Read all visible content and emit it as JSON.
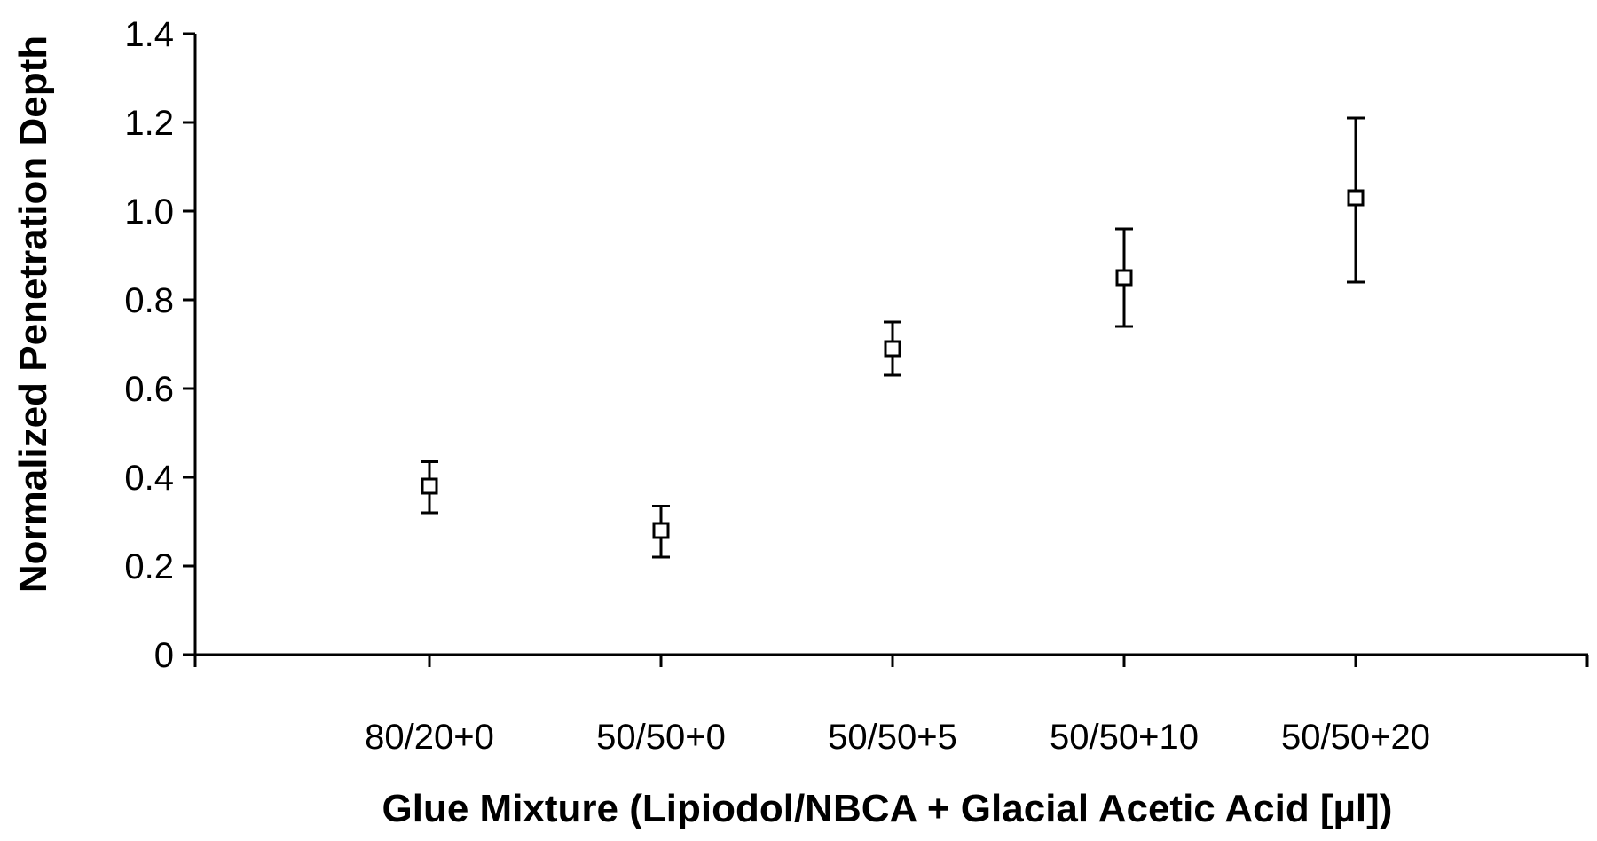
{
  "chart_data": {
    "type": "scatter",
    "title": "",
    "xlabel": "Glue Mixture (Lipiodol/NBCA + Glacial Acetic Acid [µl])",
    "ylabel": "Normalized Penetration Depth",
    "ylim": [
      0,
      1.4
    ],
    "y_ticks": [
      "0",
      "0.2",
      "0.4",
      "0.6",
      "0.8",
      "1.0",
      "1.2",
      "1.4"
    ],
    "categories": [
      "80/20+0",
      "50/50+0",
      "50/50+5",
      "50/50+10",
      "50/50+20"
    ],
    "values": [
      0.38,
      0.28,
      0.69,
      0.85,
      1.03
    ],
    "error_low": [
      0.32,
      0.22,
      0.63,
      0.74,
      0.84
    ],
    "error_high": [
      0.435,
      0.335,
      0.75,
      0.96,
      1.21
    ],
    "marker": "open-square",
    "grid": false,
    "legend": "none",
    "color": "#000000"
  }
}
